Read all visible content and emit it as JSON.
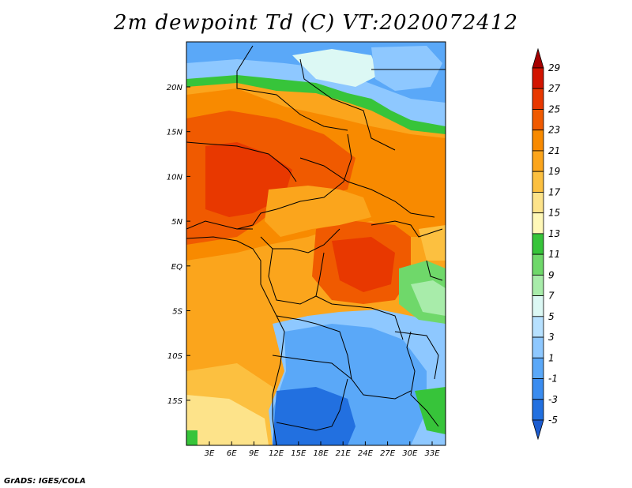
{
  "title": "2m dewpoint Td (C) VT:2020072412",
  "credit": "GrADS: IGES/COLA",
  "map": {
    "lat_labels": [
      "20N",
      "15N",
      "10N",
      "5N",
      "EQ",
      "5S",
      "10S",
      "15S"
    ],
    "lon_labels": [
      "3E",
      "6E",
      "9E",
      "12E",
      "15E",
      "18E",
      "21E",
      "24E",
      "27E",
      "30E",
      "33E"
    ],
    "lat_range": [
      -19,
      25
    ],
    "lon_range": [
      0,
      35
    ]
  },
  "colorbar": {
    "labels": [
      "29",
      "27",
      "25",
      "23",
      "21",
      "19",
      "17",
      "15",
      "13",
      "11",
      "9",
      "7",
      "5",
      "3",
      "1",
      "-1",
      "-3",
      "-5"
    ],
    "colors": [
      "#a50000",
      "#d21400",
      "#e83800",
      "#f05a00",
      "#f88a00",
      "#fba51c",
      "#fcc040",
      "#fde38a",
      "#fff8b8",
      "#37c43a",
      "#6fd86a",
      "#a8ecaa",
      "#dcf8f4",
      "#b7e1ff",
      "#8ec8ff",
      "#5aa8f8",
      "#3a8cf0",
      "#2270e0",
      "#1c5cd0"
    ]
  }
}
